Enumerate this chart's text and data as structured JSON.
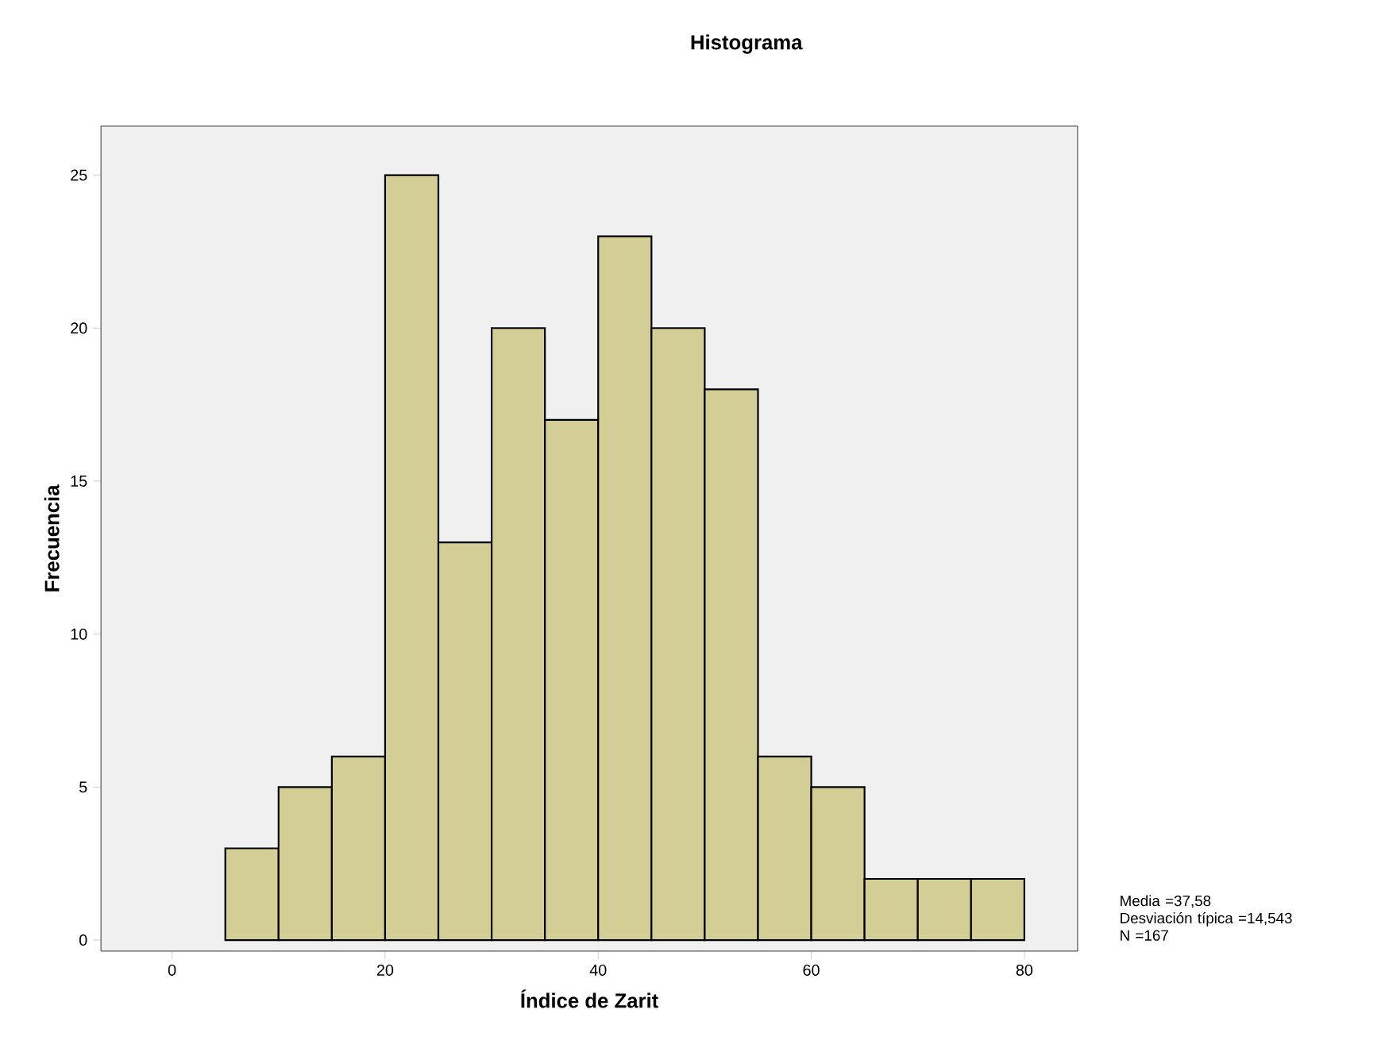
{
  "chart_data": {
    "type": "histogram",
    "title": "Histograma",
    "xlabel": "Índice de Zarit",
    "ylabel": "Frecuencia",
    "bins": [
      5,
      10,
      15,
      20,
      25,
      30,
      35,
      40,
      45,
      50,
      55,
      60,
      65,
      70,
      75,
      80
    ],
    "values": [
      3,
      5,
      6,
      25,
      13,
      20,
      17,
      23,
      20,
      18,
      6,
      5,
      2,
      2,
      2
    ],
    "color": "#d3ce96",
    "xlim": [
      -6.67,
      85
    ],
    "ylim": [
      -0.36,
      26.6
    ],
    "xticks": [
      0,
      20,
      40,
      60,
      80
    ],
    "yticks": [
      0,
      5,
      10,
      15,
      20,
      25
    ],
    "grid": false,
    "annotations": [
      "Media =37,58",
      "Desviación típica =14,543",
      "N =167"
    ]
  }
}
